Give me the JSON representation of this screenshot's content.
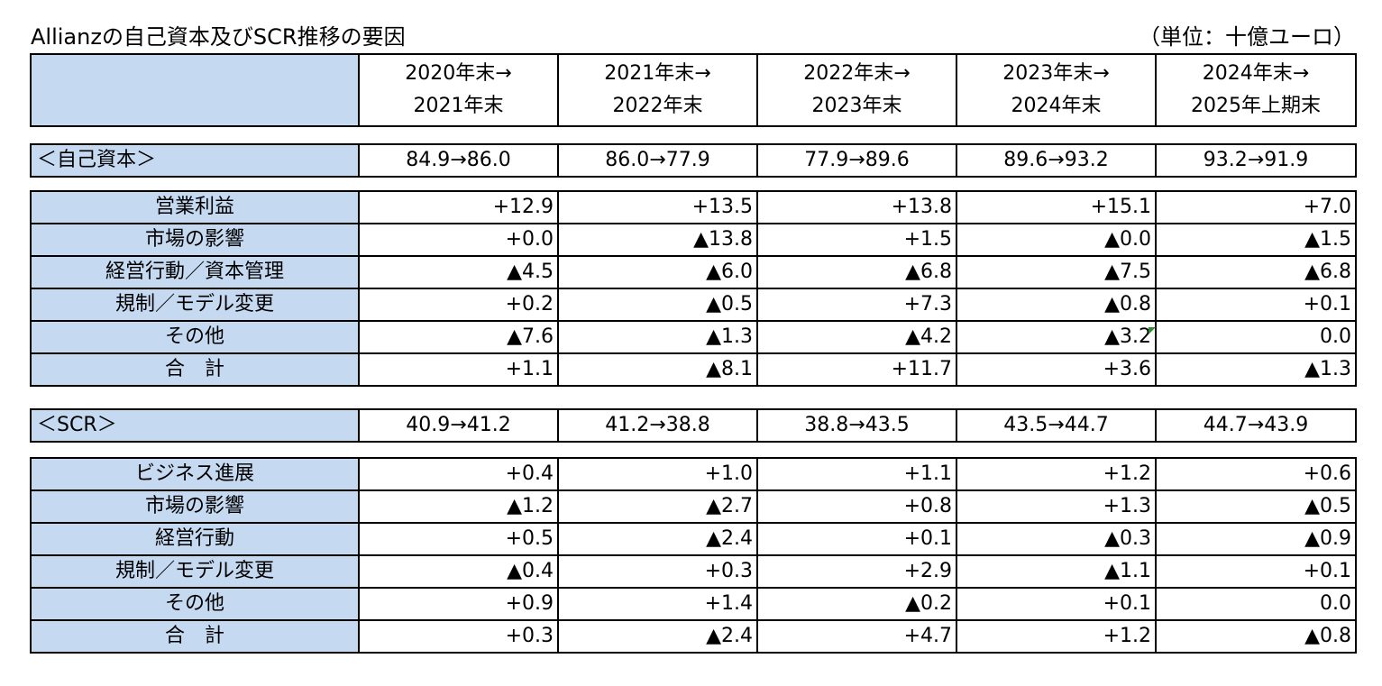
{
  "title": "Allianzの自己資本及びSCR推移の要因",
  "unit": "（単位：十億ユーロ）",
  "periods": [
    {
      "line1": "2020年末→",
      "line2": "2021年末"
    },
    {
      "line1": "2021年末→",
      "line2": "2022年末"
    },
    {
      "line1": "2022年末→",
      "line2": "2023年末"
    },
    {
      "line1": "2023年末→",
      "line2": "2024年末"
    },
    {
      "line1": "2024年末→",
      "line2": "2025年上期末"
    }
  ],
  "capital": {
    "label": "＜自己資本＞",
    "transitions": [
      "84.9→86.0",
      "86.0→77.9",
      "77.9→89.6",
      "89.6→93.2",
      "93.2→91.9"
    ],
    "rows": [
      {
        "label": "営業利益",
        "values": [
          "+12.9",
          "+13.5",
          "+13.8",
          "+15.1",
          "+7.0"
        ]
      },
      {
        "label": "市場の影響",
        "values": [
          "+0.0",
          "▲13.8",
          "+1.5",
          "▲0.0",
          "▲1.5"
        ]
      },
      {
        "label": "経営行動／資本管理",
        "values": [
          "▲4.5",
          "▲6.0",
          "▲6.8",
          "▲7.5",
          "▲6.8"
        ]
      },
      {
        "label": "規制／モデル変更",
        "values": [
          "+0.2",
          "▲0.5",
          "+7.3",
          "▲0.8",
          "+0.1"
        ]
      },
      {
        "label": "その他",
        "values": [
          "▲7.6",
          "▲1.3",
          "▲4.2",
          "▲3.2",
          "0.0"
        ]
      },
      {
        "label": "合　計",
        "values": [
          "+1.1",
          "▲8.1",
          "+11.7",
          "+3.6",
          "▲1.3"
        ]
      }
    ]
  },
  "scr": {
    "label": "＜SCR＞",
    "transitions": [
      "40.9→41.2",
      "41.2→38.8",
      "38.8→43.5",
      "43.5→44.7",
      "44.7→43.9"
    ],
    "rows": [
      {
        "label": "ビジネス進展",
        "values": [
          "+0.4",
          "+1.0",
          "+1.1",
          "+1.2",
          "+0.6"
        ]
      },
      {
        "label": "市場の影響",
        "values": [
          "▲1.2",
          "▲2.7",
          "+0.8",
          "+1.3",
          "▲0.5"
        ]
      },
      {
        "label": "経営行動",
        "values": [
          "+0.5",
          "▲2.4",
          "+0.1",
          "▲0.3",
          "▲0.9"
        ]
      },
      {
        "label": "規制／モデル変更",
        "values": [
          "▲0.4",
          "+0.3",
          "+2.9",
          "▲1.1",
          "+0.1"
        ]
      },
      {
        "label": "その他",
        "values": [
          "+0.9",
          "+1.4",
          "▲0.2",
          "+0.1",
          "0.0"
        ]
      },
      {
        "label": "合　計",
        "values": [
          "+0.3",
          "▲2.4",
          "+4.7",
          "+1.2",
          "▲0.8"
        ]
      }
    ]
  },
  "colors": {
    "label_bg": "#c5d9f1",
    "border": "#000000",
    "comment_marker": "#2e8b2e"
  }
}
